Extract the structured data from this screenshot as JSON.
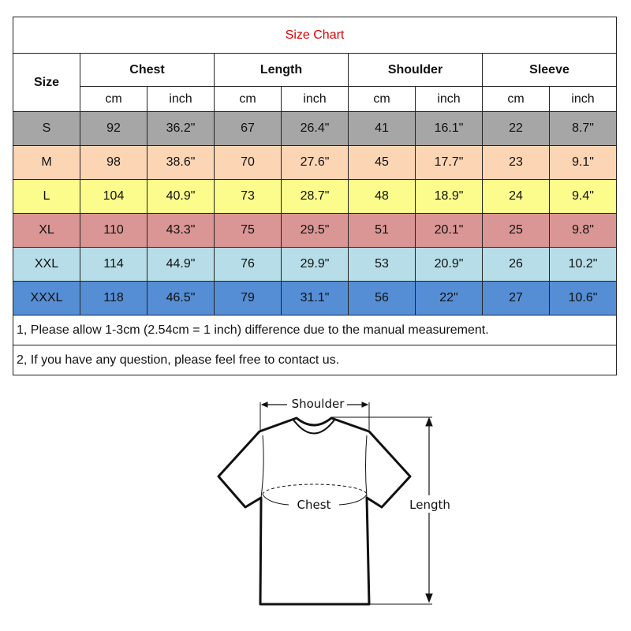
{
  "title": "Size Chart",
  "headers": {
    "size": "Size",
    "groups": [
      "Chest",
      "Length",
      "Shoulder",
      "Sleeve"
    ],
    "units": [
      "cm",
      "inch",
      "cm",
      "inch",
      "cm",
      "inch",
      "cm",
      "inch"
    ]
  },
  "rows": [
    {
      "size": "S",
      "color": "#a6a6a6",
      "values": [
        "92",
        "36.2\"",
        "67",
        "26.4\"",
        "41",
        "16.1\"",
        "22",
        "8.7\""
      ]
    },
    {
      "size": "M",
      "color": "#fcd5b5",
      "values": [
        "98",
        "38.6\"",
        "70",
        "27.6\"",
        "45",
        "17.7\"",
        "23",
        "9.1\""
      ]
    },
    {
      "size": "L",
      "color": "#fcfc8c",
      "values": [
        "104",
        "40.9\"",
        "73",
        "28.7\"",
        "48",
        "18.9\"",
        "24",
        "9.4\""
      ]
    },
    {
      "size": "XL",
      "color": "#da9694",
      "values": [
        "110",
        "43.3\"",
        "75",
        "29.5\"",
        "51",
        "20.1\"",
        "25",
        "9.8\""
      ]
    },
    {
      "size": "XXL",
      "color": "#b7dee8",
      "values": [
        "114",
        "44.9\"",
        "76",
        "29.9\"",
        "53",
        "20.9\"",
        "26",
        "10.2\""
      ]
    },
    {
      "size": "XXXL",
      "color": "#558ed5",
      "values": [
        "118",
        "46.5\"",
        "79",
        "31.1\"",
        "56",
        "22\"",
        "27",
        "10.6\""
      ]
    }
  ],
  "notes": [
    "1, Please allow 1-3cm (2.54cm = 1 inch) difference due to the manual measurement.",
    "2, If you have any question, please feel free to contact us."
  ],
  "diagram": {
    "shoulder_label": "Shoulder",
    "chest_label": "Chest",
    "length_label": "Length"
  }
}
